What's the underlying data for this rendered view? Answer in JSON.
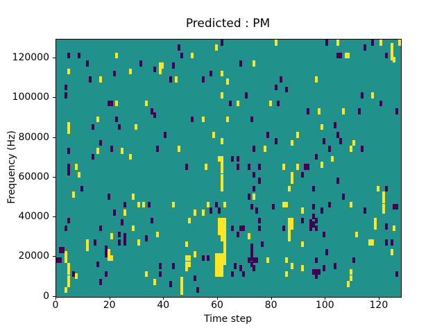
{
  "chart_data": {
    "type": "heatmap",
    "title": "Predicted : PM",
    "xlabel": "Time step",
    "ylabel": "Frequency (Hz)",
    "x_range": [
      0,
      128
    ],
    "y_range": [
      0,
      129600
    ],
    "x_ticks": [
      0,
      20,
      40,
      60,
      80,
      100,
      120
    ],
    "y_ticks": [
      0,
      20000,
      40000,
      60000,
      80000,
      100000,
      120000
    ],
    "grid": false,
    "legend": "none",
    "colormap": "viridis",
    "colors": {
      "background_mid": "#21918c",
      "low": "#440154",
      "high": "#fde725",
      "axes": "#000000"
    },
    "cell_units": {
      "time": 1,
      "freq_khz": 3
    },
    "cells_format": "[time_step, freq_kHz, class] ; class y = high (yellow), p = low (purple)",
    "cells": [
      [
        4,
        120,
        "p"
      ],
      [
        8,
        120,
        "p"
      ],
      [
        11,
        116,
        "p"
      ],
      [
        22,
        120,
        "y"
      ],
      [
        31,
        116,
        "p"
      ],
      [
        36,
        113,
        "p"
      ],
      [
        38,
        115,
        "y"
      ],
      [
        39,
        115,
        "y"
      ],
      [
        38,
        112,
        "y"
      ],
      [
        42,
        108,
        "p"
      ],
      [
        4,
        112,
        "y"
      ],
      [
        12,
        108,
        "p"
      ],
      [
        16,
        108,
        "y"
      ],
      [
        21,
        111,
        "p"
      ],
      [
        27,
        112,
        "y"
      ],
      [
        3,
        104,
        "p"
      ],
      [
        3,
        100,
        "p"
      ],
      [
        19,
        96,
        "p"
      ],
      [
        20,
        96,
        "p"
      ],
      [
        22,
        96,
        "y"
      ],
      [
        33,
        96,
        "y"
      ],
      [
        35,
        92,
        "p"
      ],
      [
        36,
        90,
        "p"
      ],
      [
        15,
        88,
        "y"
      ],
      [
        22,
        88,
        "p"
      ],
      [
        61,
        127,
        "p"
      ],
      [
        81,
        127,
        "y"
      ],
      [
        45,
        124,
        "p"
      ],
      [
        46,
        120,
        "p"
      ],
      [
        50,
        120,
        "y"
      ],
      [
        59,
        124,
        "y"
      ],
      [
        43,
        115,
        "p"
      ],
      [
        68,
        116,
        "p"
      ],
      [
        73,
        116,
        "y"
      ],
      [
        44,
        108,
        "y"
      ],
      [
        54,
        108,
        "p"
      ],
      [
        57,
        111,
        "p"
      ],
      [
        61,
        111,
        "y"
      ],
      [
        63,
        107,
        "y"
      ],
      [
        83,
        108,
        "p"
      ],
      [
        81,
        104,
        "p"
      ],
      [
        85,
        103,
        "p"
      ],
      [
        61,
        100,
        "y"
      ],
      [
        70,
        100,
        "p"
      ],
      [
        64,
        96,
        "p"
      ],
      [
        67,
        96,
        "y"
      ],
      [
        79,
        96,
        "y"
      ],
      [
        82,
        96,
        "p"
      ],
      [
        50,
        88,
        "p"
      ],
      [
        54,
        88,
        "y"
      ],
      [
        63,
        88,
        "y"
      ],
      [
        72,
        88,
        "p"
      ],
      [
        100,
        127,
        "p"
      ],
      [
        104,
        127,
        "y"
      ],
      [
        117,
        127,
        "p"
      ],
      [
        120,
        127,
        "y"
      ],
      [
        127,
        127,
        "y"
      ],
      [
        114,
        124,
        "p"
      ],
      [
        122,
        120,
        "p"
      ],
      [
        124,
        125,
        "y"
      ],
      [
        124,
        122,
        "y"
      ],
      [
        124,
        119,
        "y"
      ],
      [
        125,
        118,
        "y"
      ],
      [
        104,
        120,
        "p"
      ],
      [
        105,
        120,
        "p"
      ],
      [
        107,
        120,
        "y"
      ],
      [
        108,
        120,
        "y"
      ],
      [
        96,
        108,
        "y"
      ],
      [
        113,
        100,
        "p"
      ],
      [
        117,
        100,
        "y"
      ],
      [
        120,
        96,
        "p"
      ],
      [
        93,
        92,
        "p"
      ],
      [
        97,
        92,
        "y"
      ],
      [
        106,
        92,
        "y"
      ],
      [
        112,
        92,
        "p"
      ],
      [
        126,
        92,
        "p"
      ],
      [
        4,
        85,
        "y"
      ],
      [
        4,
        82,
        "y"
      ],
      [
        13,
        84,
        "p"
      ],
      [
        23,
        84,
        "p"
      ],
      [
        29,
        84,
        "y"
      ],
      [
        40,
        80,
        "p"
      ],
      [
        16,
        76,
        "p"
      ],
      [
        4,
        72,
        "p"
      ],
      [
        15,
        72,
        "y"
      ],
      [
        13,
        69,
        "p"
      ],
      [
        20,
        73,
        "p"
      ],
      [
        24,
        72,
        "y"
      ],
      [
        27,
        69,
        "y"
      ],
      [
        37,
        73,
        "p"
      ],
      [
        4,
        64,
        "p"
      ],
      [
        4,
        61,
        "p"
      ],
      [
        7,
        64,
        "y"
      ],
      [
        8,
        60,
        "y"
      ],
      [
        9,
        53,
        "p"
      ],
      [
        6,
        50,
        "y"
      ],
      [
        19,
        49,
        "p"
      ],
      [
        28,
        49,
        "y"
      ],
      [
        25,
        45,
        "p"
      ],
      [
        30,
        45,
        "y"
      ],
      [
        32,
        45,
        "y"
      ],
      [
        34,
        45,
        "p"
      ],
      [
        58,
        80,
        "y"
      ],
      [
        61,
        77,
        "y"
      ],
      [
        78,
        80,
        "p"
      ],
      [
        81,
        77,
        "p"
      ],
      [
        45,
        73,
        "y"
      ],
      [
        73,
        73,
        "p"
      ],
      [
        77,
        73,
        "y"
      ],
      [
        60,
        68,
        "y"
      ],
      [
        61,
        68,
        "y"
      ],
      [
        61,
        65,
        "y"
      ],
      [
        61,
        62,
        "y"
      ],
      [
        61,
        59,
        "y"
      ],
      [
        61,
        56,
        "y"
      ],
      [
        61,
        53,
        "y"
      ],
      [
        65,
        68,
        "p"
      ],
      [
        67,
        68,
        "p"
      ],
      [
        67,
        64,
        "p"
      ],
      [
        71,
        64,
        "p"
      ],
      [
        73,
        60,
        "p"
      ],
      [
        75,
        64,
        "p"
      ],
      [
        55,
        64,
        "y"
      ],
      [
        48,
        64,
        "p"
      ],
      [
        75,
        57,
        "p"
      ],
      [
        73,
        53,
        "p"
      ],
      [
        73,
        49,
        "y"
      ],
      [
        71,
        49,
        "p"
      ],
      [
        43,
        45,
        "y"
      ],
      [
        56,
        45,
        "y"
      ],
      [
        59,
        45,
        "p"
      ],
      [
        62,
        45,
        "y"
      ],
      [
        72,
        44,
        "p"
      ],
      [
        80,
        44,
        "p"
      ],
      [
        98,
        84,
        "y"
      ],
      [
        103,
        85,
        "p"
      ],
      [
        89,
        80,
        "y"
      ],
      [
        104,
        80,
        "p"
      ],
      [
        87,
        76,
        "y"
      ],
      [
        99,
        77,
        "p"
      ],
      [
        105,
        77,
        "p"
      ],
      [
        110,
        76,
        "y"
      ],
      [
        101,
        73,
        "p"
      ],
      [
        109,
        73,
        "y"
      ],
      [
        113,
        73,
        "p"
      ],
      [
        96,
        69,
        "p"
      ],
      [
        102,
        68,
        "y"
      ],
      [
        89,
        64,
        "y"
      ],
      [
        92,
        64,
        "p"
      ],
      [
        93,
        64,
        "p"
      ],
      [
        91,
        60,
        "p"
      ],
      [
        98,
        65,
        "y"
      ],
      [
        84,
        64,
        "y"
      ],
      [
        86,
        53,
        "y"
      ],
      [
        87,
        60,
        "y"
      ],
      [
        87,
        57,
        "y"
      ],
      [
        95,
        53,
        "p"
      ],
      [
        104,
        57,
        "p"
      ],
      [
        106,
        49,
        "p"
      ],
      [
        119,
        53,
        "y"
      ],
      [
        122,
        53,
        "p"
      ],
      [
        121,
        50,
        "y"
      ],
      [
        121,
        47,
        "y"
      ],
      [
        121,
        44,
        "y"
      ],
      [
        84,
        45,
        "y"
      ],
      [
        85,
        45,
        "y"
      ],
      [
        95,
        44,
        "p"
      ],
      [
        101,
        45,
        "p"
      ],
      [
        109,
        45,
        "y"
      ],
      [
        125,
        44,
        "p"
      ],
      [
        126,
        44,
        "p"
      ],
      [
        21,
        41,
        "p"
      ],
      [
        25,
        41,
        "y"
      ],
      [
        4,
        37,
        "p"
      ],
      [
        3,
        33,
        "p"
      ],
      [
        16,
        33,
        "p"
      ],
      [
        24,
        36,
        "p"
      ],
      [
        28,
        33,
        "y"
      ],
      [
        35,
        37,
        "p"
      ],
      [
        37,
        30,
        "y"
      ],
      [
        20,
        29,
        "y"
      ],
      [
        23,
        30,
        "p"
      ],
      [
        25,
        29,
        "p"
      ],
      [
        25,
        26,
        "p"
      ],
      [
        23,
        26,
        "p"
      ],
      [
        30,
        26,
        "y"
      ],
      [
        33,
        28,
        "p"
      ],
      [
        11,
        26,
        "y"
      ],
      [
        11,
        23,
        "y"
      ],
      [
        14,
        26,
        "p"
      ],
      [
        18,
        23,
        "p"
      ],
      [
        18,
        20,
        "p"
      ],
      [
        19,
        21,
        "y"
      ],
      [
        19,
        18,
        "y"
      ],
      [
        20,
        18,
        "y"
      ],
      [
        1,
        22,
        "p"
      ],
      [
        2,
        22,
        "p"
      ],
      [
        0,
        17,
        "p"
      ],
      [
        1,
        17,
        "p"
      ],
      [
        3,
        20,
        "y"
      ],
      [
        3,
        17,
        "y"
      ],
      [
        4,
        14,
        "y"
      ],
      [
        4,
        11,
        "y"
      ],
      [
        4,
        8,
        "y"
      ],
      [
        4,
        5,
        "y"
      ],
      [
        3,
        2,
        "y"
      ],
      [
        6,
        10,
        "p"
      ],
      [
        7,
        9,
        "y"
      ],
      [
        16,
        6,
        "p"
      ],
      [
        18,
        10,
        "p"
      ],
      [
        15,
        15,
        "p"
      ],
      [
        33,
        10,
        "y"
      ],
      [
        36,
        6,
        "y"
      ],
      [
        38,
        14,
        "p"
      ],
      [
        38,
        10,
        "p"
      ],
      [
        42,
        5,
        "p"
      ],
      [
        51,
        41,
        "y"
      ],
      [
        54,
        41,
        "y"
      ],
      [
        57,
        42,
        "p"
      ],
      [
        60,
        42,
        "p"
      ],
      [
        74,
        42,
        "p"
      ],
      [
        49,
        37,
        "y"
      ],
      [
        75,
        37,
        "p"
      ],
      [
        60,
        37,
        "y"
      ],
      [
        61,
        37,
        "y"
      ],
      [
        62,
        37,
        "y"
      ],
      [
        60,
        34,
        "y"
      ],
      [
        61,
        34,
        "y"
      ],
      [
        62,
        34,
        "y"
      ],
      [
        60,
        31,
        "y"
      ],
      [
        61,
        31,
        "y"
      ],
      [
        62,
        31,
        "y"
      ],
      [
        61,
        28,
        "y"
      ],
      [
        62,
        28,
        "y"
      ],
      [
        62,
        25,
        "y"
      ],
      [
        62,
        22,
        "y"
      ],
      [
        59,
        19,
        "y"
      ],
      [
        60,
        19,
        "y"
      ],
      [
        61,
        19,
        "y"
      ],
      [
        62,
        19,
        "y"
      ],
      [
        59,
        16,
        "y"
      ],
      [
        60,
        16,
        "y"
      ],
      [
        61,
        16,
        "y"
      ],
      [
        62,
        16,
        "y"
      ],
      [
        59,
        13,
        "y"
      ],
      [
        60,
        13,
        "y"
      ],
      [
        61,
        13,
        "y"
      ],
      [
        59,
        10,
        "y"
      ],
      [
        60,
        10,
        "y"
      ],
      [
        61,
        10,
        "y"
      ],
      [
        65,
        33,
        "p"
      ],
      [
        68,
        33,
        "p"
      ],
      [
        69,
        33,
        "p"
      ],
      [
        67,
        30,
        "p"
      ],
      [
        71,
        29,
        "y"
      ],
      [
        75,
        33,
        "p"
      ],
      [
        76,
        25,
        "p"
      ],
      [
        72,
        24,
        "p"
      ],
      [
        72,
        21,
        "p"
      ],
      [
        72,
        18,
        "p"
      ],
      [
        72,
        15,
        "p"
      ],
      [
        71,
        17,
        "p"
      ],
      [
        73,
        17,
        "p"
      ],
      [
        74,
        17,
        "p"
      ],
      [
        73,
        13,
        "p"
      ],
      [
        78,
        17,
        "y"
      ],
      [
        66,
        14,
        "p"
      ],
      [
        65,
        10,
        "p"
      ],
      [
        68,
        13,
        "p"
      ],
      [
        69,
        10,
        "p"
      ],
      [
        51,
        8,
        "p"
      ],
      [
        48,
        25,
        "y"
      ],
      [
        51,
        20,
        "y"
      ],
      [
        48,
        18,
        "y"
      ],
      [
        49,
        18,
        "y"
      ],
      [
        48,
        15,
        "y"
      ],
      [
        49,
        15,
        "y"
      ],
      [
        48,
        13,
        "y"
      ],
      [
        54,
        18,
        "p"
      ],
      [
        56,
        18,
        "p"
      ],
      [
        43,
        14,
        "p"
      ],
      [
        46,
        7,
        "y"
      ],
      [
        46,
        4,
        "y"
      ],
      [
        46,
        1,
        "y"
      ],
      [
        52,
        2,
        "p"
      ],
      [
        84,
        33,
        "p"
      ],
      [
        91,
        42,
        "y"
      ],
      [
        98,
        42,
        "p"
      ],
      [
        114,
        42,
        "p"
      ],
      [
        121,
        42,
        "y"
      ],
      [
        86,
        37,
        "y"
      ],
      [
        87,
        37,
        "y"
      ],
      [
        86,
        34,
        "y"
      ],
      [
        87,
        34,
        "y"
      ],
      [
        86,
        31,
        "y"
      ],
      [
        86,
        28,
        "y"
      ],
      [
        91,
        37,
        "p"
      ],
      [
        94,
        36,
        "p"
      ],
      [
        94,
        33,
        "p"
      ],
      [
        95,
        39,
        "p"
      ],
      [
        95,
        35,
        "p"
      ],
      [
        96,
        37,
        "p"
      ],
      [
        96,
        33,
        "p"
      ],
      [
        99,
        30,
        "p"
      ],
      [
        118,
        37,
        "y"
      ],
      [
        118,
        34,
        "y"
      ],
      [
        122,
        34,
        "p"
      ],
      [
        125,
        33,
        "y"
      ],
      [
        111,
        30,
        "y"
      ],
      [
        122,
        26,
        "p"
      ],
      [
        124,
        26,
        "p"
      ],
      [
        116,
        26,
        "y"
      ],
      [
        117,
        26,
        "y"
      ],
      [
        124,
        21,
        "y"
      ],
      [
        91,
        25,
        "y"
      ],
      [
        100,
        21,
        "p"
      ],
      [
        110,
        17,
        "p"
      ],
      [
        96,
        17,
        "p"
      ],
      [
        85,
        17,
        "y"
      ],
      [
        87,
        14,
        "y"
      ],
      [
        91,
        13,
        "y"
      ],
      [
        99,
        13,
        "p"
      ],
      [
        103,
        14,
        "p"
      ],
      [
        85,
        10,
        "y"
      ],
      [
        95,
        11,
        "p"
      ],
      [
        96,
        11,
        "p"
      ],
      [
        97,
        11,
        "p"
      ],
      [
        96,
        9,
        "p"
      ],
      [
        109,
        11,
        "y"
      ],
      [
        109,
        8,
        "y"
      ],
      [
        108,
        5,
        "y"
      ],
      [
        126,
        10,
        "p"
      ]
    ]
  }
}
